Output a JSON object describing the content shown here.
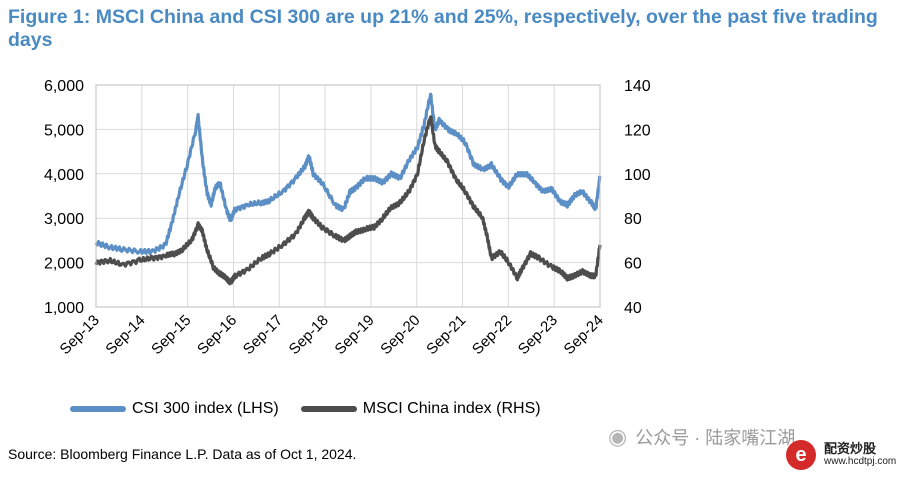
{
  "title": "Figure 1: MSCI China and CSI 300 are up 21% and 25%, respectively, over the past five trading days",
  "source": "Source: Bloomberg Finance L.P. Data as of Oct 1, 2024.",
  "watermark": {
    "text": "公众号 · 陆家嘴江湖",
    "icon": "wechat-icon"
  },
  "logo": {
    "mark": "e",
    "name": "配资炒股",
    "url": "www.hcdtpj.com"
  },
  "chart_data": {
    "type": "line",
    "x_labels": [
      "Sep-13",
      "Sep-14",
      "Sep-15",
      "Sep-16",
      "Sep-17",
      "Sep-18",
      "Sep-19",
      "Sep-20",
      "Sep-21",
      "Sep-22",
      "Sep-23",
      "Sep-24"
    ],
    "left_axis": {
      "min": 1000,
      "max": 6000,
      "ticks": [
        "1,000",
        "2,000",
        "3,000",
        "4,000",
        "5,000",
        "6,000"
      ]
    },
    "right_axis": {
      "min": 40,
      "max": 140,
      "ticks": [
        "40",
        "60",
        "80",
        "100",
        "120",
        "140"
      ]
    },
    "grid": true,
    "legend_position": "bottom-left",
    "series": [
      {
        "name": "CSI 300 index (LHS)",
        "axis": "left",
        "color": "#5b8fc5",
        "points": [
          [
            0,
            2450
          ],
          [
            0.3,
            2350
          ],
          [
            0.6,
            2300
          ],
          [
            1,
            2250
          ],
          [
            1.3,
            2250
          ],
          [
            1.6,
            2400
          ],
          [
            1.75,
            2900
          ],
          [
            1.9,
            3500
          ],
          [
            2.1,
            4200
          ],
          [
            2.3,
            5000
          ],
          [
            2.35,
            5300
          ],
          [
            2.45,
            4300
          ],
          [
            2.55,
            3600
          ],
          [
            2.65,
            3300
          ],
          [
            2.75,
            3700
          ],
          [
            2.85,
            3800
          ],
          [
            3.0,
            3200
          ],
          [
            3.1,
            2950
          ],
          [
            3.2,
            3200
          ],
          [
            3.5,
            3300
          ],
          [
            3.8,
            3350
          ],
          [
            4.0,
            3400
          ],
          [
            4.3,
            3600
          ],
          [
            4.6,
            3900
          ],
          [
            4.8,
            4150
          ],
          [
            4.9,
            4400
          ],
          [
            5.0,
            4000
          ],
          [
            5.2,
            3800
          ],
          [
            5.5,
            3300
          ],
          [
            5.7,
            3200
          ],
          [
            5.85,
            3600
          ],
          [
            6.0,
            3700
          ],
          [
            6.2,
            3900
          ],
          [
            6.4,
            3900
          ],
          [
            6.6,
            3800
          ],
          [
            6.8,
            4000
          ],
          [
            7.0,
            3900
          ],
          [
            7.2,
            4300
          ],
          [
            7.4,
            4600
          ],
          [
            7.55,
            5100
          ],
          [
            7.7,
            5800
          ],
          [
            7.8,
            5000
          ],
          [
            7.9,
            5200
          ],
          [
            8.1,
            5000
          ],
          [
            8.3,
            4900
          ],
          [
            8.5,
            4700
          ],
          [
            8.7,
            4200
          ],
          [
            8.9,
            4100
          ],
          [
            9.1,
            4200
          ],
          [
            9.3,
            3900
          ],
          [
            9.5,
            3700
          ],
          [
            9.7,
            4000
          ],
          [
            9.9,
            4000
          ],
          [
            10.1,
            3800
          ],
          [
            10.3,
            3600
          ],
          [
            10.5,
            3650
          ],
          [
            10.7,
            3350
          ],
          [
            10.85,
            3300
          ],
          [
            11.0,
            3500
          ],
          [
            11.2,
            3600
          ],
          [
            11.4,
            3350
          ],
          [
            11.5,
            3200
          ],
          [
            11.6,
            3950
          ]
        ]
      },
      {
        "name": "MSCI China index (RHS)",
        "axis": "right",
        "color": "#4d4d4d",
        "points": [
          [
            0,
            60
          ],
          [
            0.3,
            61
          ],
          [
            0.6,
            59
          ],
          [
            1,
            61
          ],
          [
            1.3,
            62
          ],
          [
            1.6,
            63
          ],
          [
            1.8,
            64
          ],
          [
            2.0,
            66
          ],
          [
            2.2,
            70
          ],
          [
            2.35,
            77
          ],
          [
            2.45,
            74
          ],
          [
            2.55,
            66
          ],
          [
            2.7,
            58
          ],
          [
            2.85,
            55
          ],
          [
            3.0,
            53
          ],
          [
            3.1,
            51
          ],
          [
            3.2,
            54
          ],
          [
            3.5,
            57
          ],
          [
            3.8,
            62
          ],
          [
            4.0,
            64
          ],
          [
            4.3,
            68
          ],
          [
            4.6,
            73
          ],
          [
            4.8,
            80
          ],
          [
            4.9,
            83
          ],
          [
            5.0,
            80
          ],
          [
            5.2,
            76
          ],
          [
            5.5,
            72
          ],
          [
            5.7,
            70
          ],
          [
            5.85,
            72
          ],
          [
            6.0,
            74
          ],
          [
            6.2,
            75
          ],
          [
            6.4,
            76
          ],
          [
            6.6,
            80
          ],
          [
            6.8,
            85
          ],
          [
            7.0,
            87
          ],
          [
            7.2,
            92
          ],
          [
            7.4,
            100
          ],
          [
            7.55,
            115
          ],
          [
            7.7,
            126
          ],
          [
            7.8,
            113
          ],
          [
            7.9,
            110
          ],
          [
            8.1,
            105
          ],
          [
            8.3,
            97
          ],
          [
            8.5,
            92
          ],
          [
            8.7,
            85
          ],
          [
            8.9,
            80
          ],
          [
            9.0,
            72
          ],
          [
            9.1,
            62
          ],
          [
            9.3,
            65
          ],
          [
            9.5,
            60
          ],
          [
            9.7,
            53
          ],
          [
            9.8,
            57
          ],
          [
            10.0,
            64
          ],
          [
            10.2,
            62
          ],
          [
            10.5,
            58
          ],
          [
            10.7,
            56
          ],
          [
            10.85,
            53
          ],
          [
            11.0,
            54
          ],
          [
            11.2,
            56
          ],
          [
            11.4,
            54
          ],
          [
            11.5,
            54
          ],
          [
            11.6,
            68
          ]
        ]
      }
    ]
  }
}
